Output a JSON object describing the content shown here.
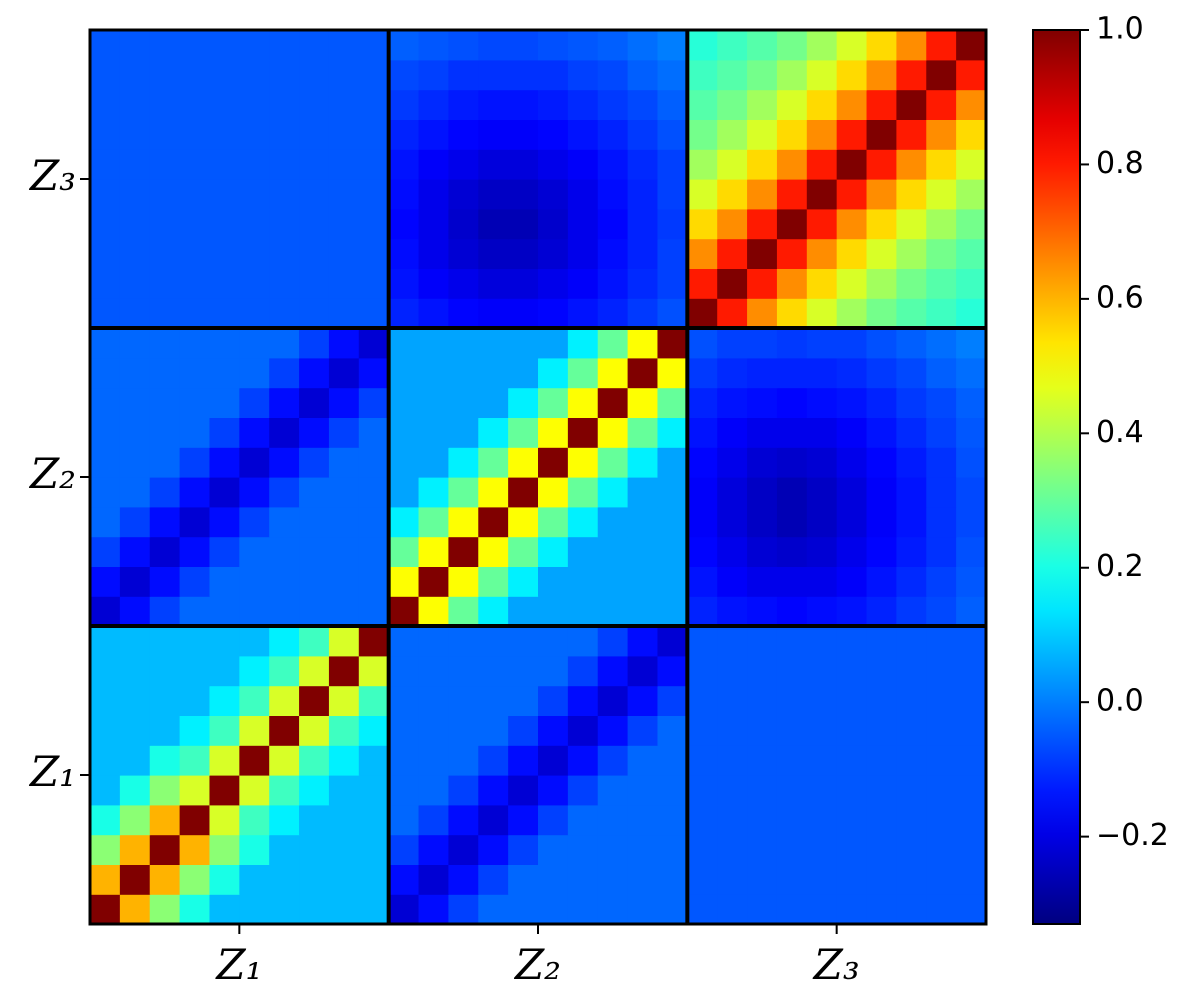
{
  "chart_data": {
    "type": "heatmap",
    "colormap": "jet",
    "categories": [
      "Z₁",
      "Z₂",
      "Z₃"
    ],
    "y_categories": [
      "Z₁",
      "Z₂",
      "Z₃"
    ],
    "zlim": [
      -0.33,
      1.0
    ],
    "zticks": [
      {
        "value": -0.2,
        "label": "−0.2"
      },
      {
        "value": 0,
        "label": "0.0"
      },
      0.2,
      0.4,
      0.6,
      0.8,
      {
        "value": 1,
        "label": "1.0"
      }
    ],
    "z": [
      [
        1,
        0.6,
        0.35,
        0.2,
        0.08,
        0.08,
        0.08,
        0.08,
        0.08,
        0.08,
        -0.22,
        -0.15,
        -0.08,
        -0.03,
        -0.03,
        -0.03,
        -0.03,
        -0.03,
        -0.03,
        -0.03,
        -0.05,
        -0.05,
        -0.05,
        -0.05,
        -0.05,
        -0.05,
        -0.05,
        -0.05,
        -0.05,
        -0.05
      ],
      [
        0.6,
        1,
        0.6,
        0.35,
        0.2,
        0.08,
        0.08,
        0.08,
        0.08,
        0.08,
        -0.15,
        -0.22,
        -0.15,
        -0.08,
        -0.03,
        -0.03,
        -0.03,
        -0.03,
        -0.03,
        -0.03,
        -0.05,
        -0.05,
        -0.05,
        -0.05,
        -0.05,
        -0.05,
        -0.05,
        -0.05,
        -0.05,
        -0.05
      ],
      [
        0.35,
        0.6,
        1,
        0.6,
        0.35,
        0.2,
        0.08,
        0.08,
        0.08,
        0.08,
        -0.08,
        -0.15,
        -0.22,
        -0.15,
        -0.08,
        -0.03,
        -0.03,
        -0.03,
        -0.03,
        -0.03,
        -0.05,
        -0.05,
        -0.05,
        -0.05,
        -0.05,
        -0.05,
        -0.05,
        -0.05,
        -0.05,
        -0.05
      ],
      [
        0.2,
        0.35,
        0.6,
        1,
        0.45,
        0.25,
        0.15,
        0.08,
        0.08,
        0.08,
        -0.03,
        -0.08,
        -0.15,
        -0.22,
        -0.15,
        -0.08,
        -0.03,
        -0.03,
        -0.03,
        -0.03,
        -0.05,
        -0.05,
        -0.05,
        -0.05,
        -0.05,
        -0.05,
        -0.05,
        -0.05,
        -0.05,
        -0.05
      ],
      [
        0.08,
        0.2,
        0.35,
        0.45,
        1,
        0.45,
        0.25,
        0.15,
        0.08,
        0.08,
        -0.03,
        -0.03,
        -0.08,
        -0.15,
        -0.22,
        -0.15,
        -0.08,
        -0.03,
        -0.03,
        -0.03,
        -0.05,
        -0.05,
        -0.05,
        -0.05,
        -0.05,
        -0.05,
        -0.05,
        -0.05,
        -0.05,
        -0.05
      ],
      [
        0.08,
        0.08,
        0.2,
        0.25,
        0.45,
        1,
        0.45,
        0.25,
        0.15,
        0.08,
        -0.03,
        -0.03,
        -0.03,
        -0.08,
        -0.15,
        -0.22,
        -0.15,
        -0.08,
        -0.03,
        -0.03,
        -0.05,
        -0.05,
        -0.05,
        -0.05,
        -0.05,
        -0.05,
        -0.05,
        -0.05,
        -0.05,
        -0.05
      ],
      [
        0.08,
        0.08,
        0.08,
        0.15,
        0.25,
        0.45,
        1,
        0.45,
        0.25,
        0.15,
        -0.03,
        -0.03,
        -0.03,
        -0.03,
        -0.08,
        -0.15,
        -0.22,
        -0.15,
        -0.08,
        -0.03,
        -0.05,
        -0.05,
        -0.05,
        -0.05,
        -0.05,
        -0.05,
        -0.05,
        -0.05,
        -0.05,
        -0.05
      ],
      [
        0.08,
        0.08,
        0.08,
        0.08,
        0.15,
        0.25,
        0.45,
        1,
        0.45,
        0.25,
        -0.03,
        -0.03,
        -0.03,
        -0.03,
        -0.03,
        -0.08,
        -0.15,
        -0.22,
        -0.15,
        -0.08,
        -0.05,
        -0.05,
        -0.05,
        -0.05,
        -0.05,
        -0.05,
        -0.05,
        -0.05,
        -0.05,
        -0.05
      ],
      [
        0.08,
        0.08,
        0.08,
        0.08,
        0.08,
        0.15,
        0.25,
        0.45,
        1,
        0.45,
        -0.03,
        -0.03,
        -0.03,
        -0.03,
        -0.03,
        -0.03,
        -0.08,
        -0.15,
        -0.22,
        -0.15,
        -0.05,
        -0.05,
        -0.05,
        -0.05,
        -0.05,
        -0.05,
        -0.05,
        -0.05,
        -0.05,
        -0.05
      ],
      [
        0.08,
        0.08,
        0.08,
        0.08,
        0.08,
        0.08,
        0.15,
        0.25,
        0.45,
        1,
        -0.03,
        -0.03,
        -0.03,
        -0.03,
        -0.03,
        -0.03,
        -0.03,
        -0.08,
        -0.15,
        -0.22,
        -0.05,
        -0.05,
        -0.05,
        -0.05,
        -0.05,
        -0.05,
        -0.05,
        -0.05,
        -0.05,
        -0.05
      ],
      [
        -0.22,
        -0.15,
        -0.08,
        -0.03,
        -0.03,
        -0.03,
        -0.03,
        -0.03,
        -0.03,
        -0.03,
        1,
        0.5,
        0.3,
        0.15,
        0.05,
        0.05,
        0.05,
        0.05,
        0.05,
        0.05,
        -0.12,
        -0.14,
        -0.15,
        -0.16,
        -0.15,
        -0.14,
        -0.12,
        -0.09,
        -0.07,
        -0.04
      ],
      [
        -0.15,
        -0.22,
        -0.15,
        -0.08,
        -0.03,
        -0.03,
        -0.03,
        -0.03,
        -0.03,
        -0.03,
        0.5,
        1,
        0.5,
        0.3,
        0.15,
        0.05,
        0.05,
        0.05,
        0.05,
        0.05,
        -0.14,
        -0.17,
        -0.19,
        -0.19,
        -0.19,
        -0.17,
        -0.14,
        -0.11,
        -0.08,
        -0.05
      ],
      [
        -0.08,
        -0.15,
        -0.22,
        -0.15,
        -0.08,
        -0.03,
        -0.03,
        -0.03,
        -0.03,
        -0.03,
        0.3,
        0.5,
        1,
        0.5,
        0.3,
        0.15,
        0.05,
        0.05,
        0.05,
        0.05,
        -0.16,
        -0.19,
        -0.22,
        -0.23,
        -0.22,
        -0.19,
        -0.16,
        -0.13,
        -0.1,
        -0.06
      ],
      [
        -0.03,
        -0.08,
        -0.15,
        -0.22,
        -0.15,
        -0.08,
        -0.03,
        -0.03,
        -0.03,
        -0.03,
        0.15,
        0.3,
        0.5,
        1,
        0.5,
        0.3,
        0.15,
        0.05,
        0.05,
        0.05,
        -0.17,
        -0.21,
        -0.24,
        -0.26,
        -0.24,
        -0.21,
        -0.17,
        -0.14,
        -0.1,
        -0.07
      ],
      [
        -0.03,
        -0.03,
        -0.08,
        -0.15,
        -0.22,
        -0.15,
        -0.08,
        -0.03,
        -0.03,
        -0.03,
        0.05,
        0.15,
        0.3,
        0.5,
        1,
        0.5,
        0.3,
        0.15,
        0.05,
        0.05,
        -0.17,
        -0.21,
        -0.24,
        -0.26,
        -0.24,
        -0.21,
        -0.17,
        -0.14,
        -0.1,
        -0.07
      ],
      [
        -0.03,
        -0.03,
        -0.03,
        -0.08,
        -0.15,
        -0.22,
        -0.15,
        -0.08,
        -0.03,
        -0.03,
        0.05,
        0.05,
        0.15,
        0.3,
        0.5,
        1,
        0.5,
        0.3,
        0.15,
        0.05,
        -0.16,
        -0.19,
        -0.22,
        -0.23,
        -0.22,
        -0.19,
        -0.16,
        -0.13,
        -0.1,
        -0.06
      ],
      [
        -0.03,
        -0.03,
        -0.03,
        -0.03,
        -0.08,
        -0.15,
        -0.22,
        -0.15,
        -0.08,
        -0.03,
        0.05,
        0.05,
        0.05,
        0.15,
        0.3,
        0.5,
        1,
        0.5,
        0.3,
        0.15,
        -0.14,
        -0.17,
        -0.19,
        -0.19,
        -0.19,
        -0.17,
        -0.14,
        -0.11,
        -0.08,
        -0.05
      ],
      [
        -0.03,
        -0.03,
        -0.03,
        -0.03,
        -0.03,
        -0.08,
        -0.15,
        -0.22,
        -0.15,
        -0.08,
        0.05,
        0.05,
        0.05,
        0.05,
        0.15,
        0.3,
        0.5,
        1,
        0.5,
        0.3,
        -0.12,
        -0.14,
        -0.15,
        -0.16,
        -0.15,
        -0.14,
        -0.12,
        -0.09,
        -0.07,
        -0.04
      ],
      [
        -0.03,
        -0.03,
        -0.03,
        -0.03,
        -0.03,
        -0.03,
        -0.08,
        -0.15,
        -0.22,
        -0.15,
        0.05,
        0.05,
        0.05,
        0.05,
        0.05,
        0.15,
        0.3,
        0.5,
        1,
        0.5,
        -0.09,
        -0.11,
        -0.12,
        -0.12,
        -0.12,
        -0.11,
        -0.09,
        -0.07,
        -0.04,
        -0.02
      ],
      [
        -0.03,
        -0.03,
        -0.03,
        -0.03,
        -0.03,
        -0.03,
        -0.03,
        -0.08,
        -0.15,
        -0.22,
        0.05,
        0.05,
        0.05,
        0.05,
        0.05,
        0.05,
        0.15,
        0.3,
        0.5,
        1,
        -0.06,
        -0.08,
        -0.08,
        -0.09,
        -0.08,
        -0.08,
        -0.06,
        -0.04,
        -0.02,
        0
      ],
      [
        -0.05,
        -0.05,
        -0.05,
        -0.05,
        -0.05,
        -0.05,
        -0.05,
        -0.05,
        -0.05,
        -0.05,
        -0.12,
        -0.14,
        -0.16,
        -0.17,
        -0.17,
        -0.16,
        -0.14,
        -0.12,
        -0.09,
        -0.06,
        1,
        0.8,
        0.65,
        0.55,
        0.45,
        0.38,
        0.32,
        0.28,
        0.25,
        0.22
      ],
      [
        -0.05,
        -0.05,
        -0.05,
        -0.05,
        -0.05,
        -0.05,
        -0.05,
        -0.05,
        -0.05,
        -0.05,
        -0.14,
        -0.17,
        -0.19,
        -0.21,
        -0.21,
        -0.19,
        -0.17,
        -0.14,
        -0.11,
        -0.08,
        0.8,
        1,
        0.8,
        0.65,
        0.55,
        0.45,
        0.38,
        0.32,
        0.28,
        0.25
      ],
      [
        -0.05,
        -0.05,
        -0.05,
        -0.05,
        -0.05,
        -0.05,
        -0.05,
        -0.05,
        -0.05,
        -0.05,
        -0.15,
        -0.19,
        -0.22,
        -0.24,
        -0.24,
        -0.22,
        -0.19,
        -0.15,
        -0.12,
        -0.08,
        0.65,
        0.8,
        1,
        0.8,
        0.65,
        0.55,
        0.45,
        0.38,
        0.32,
        0.28
      ],
      [
        -0.05,
        -0.05,
        -0.05,
        -0.05,
        -0.05,
        -0.05,
        -0.05,
        -0.05,
        -0.05,
        -0.05,
        -0.16,
        -0.19,
        -0.23,
        -0.26,
        -0.26,
        -0.23,
        -0.19,
        -0.16,
        -0.12,
        -0.09,
        0.55,
        0.65,
        0.8,
        1,
        0.8,
        0.65,
        0.55,
        0.45,
        0.38,
        0.32
      ],
      [
        -0.05,
        -0.05,
        -0.05,
        -0.05,
        -0.05,
        -0.05,
        -0.05,
        -0.05,
        -0.05,
        -0.05,
        -0.15,
        -0.19,
        -0.22,
        -0.24,
        -0.24,
        -0.22,
        -0.19,
        -0.15,
        -0.12,
        -0.08,
        0.45,
        0.55,
        0.65,
        0.8,
        1,
        0.8,
        0.65,
        0.55,
        0.45,
        0.38
      ],
      [
        -0.05,
        -0.05,
        -0.05,
        -0.05,
        -0.05,
        -0.05,
        -0.05,
        -0.05,
        -0.05,
        -0.05,
        -0.14,
        -0.17,
        -0.19,
        -0.21,
        -0.21,
        -0.19,
        -0.17,
        -0.14,
        -0.11,
        -0.08,
        0.38,
        0.45,
        0.55,
        0.65,
        0.8,
        1,
        0.8,
        0.65,
        0.55,
        0.45
      ],
      [
        -0.05,
        -0.05,
        -0.05,
        -0.05,
        -0.05,
        -0.05,
        -0.05,
        -0.05,
        -0.05,
        -0.05,
        -0.12,
        -0.14,
        -0.16,
        -0.17,
        -0.17,
        -0.16,
        -0.14,
        -0.12,
        -0.09,
        -0.06,
        0.32,
        0.38,
        0.45,
        0.55,
        0.65,
        0.8,
        1,
        0.8,
        0.65,
        0.55
      ],
      [
        -0.05,
        -0.05,
        -0.05,
        -0.05,
        -0.05,
        -0.05,
        -0.05,
        -0.05,
        -0.05,
        -0.05,
        -0.09,
        -0.11,
        -0.13,
        -0.14,
        -0.14,
        -0.13,
        -0.11,
        -0.09,
        -0.07,
        -0.04,
        0.28,
        0.32,
        0.38,
        0.45,
        0.55,
        0.65,
        0.8,
        1,
        0.8,
        0.65
      ],
      [
        -0.05,
        -0.05,
        -0.05,
        -0.05,
        -0.05,
        -0.05,
        -0.05,
        -0.05,
        -0.05,
        -0.05,
        -0.07,
        -0.08,
        -0.1,
        -0.1,
        -0.1,
        -0.1,
        -0.08,
        -0.07,
        -0.04,
        -0.02,
        0.25,
        0.28,
        0.32,
        0.38,
        0.45,
        0.55,
        0.65,
        0.8,
        1,
        0.8
      ],
      [
        -0.05,
        -0.05,
        -0.05,
        -0.05,
        -0.05,
        -0.05,
        -0.05,
        -0.05,
        -0.05,
        -0.05,
        -0.04,
        -0.05,
        -0.06,
        -0.07,
        -0.07,
        -0.06,
        -0.05,
        -0.04,
        -0.02,
        0,
        0.22,
        0.25,
        0.28,
        0.32,
        0.38,
        0.45,
        0.55,
        0.65,
        0.8,
        1
      ]
    ]
  }
}
